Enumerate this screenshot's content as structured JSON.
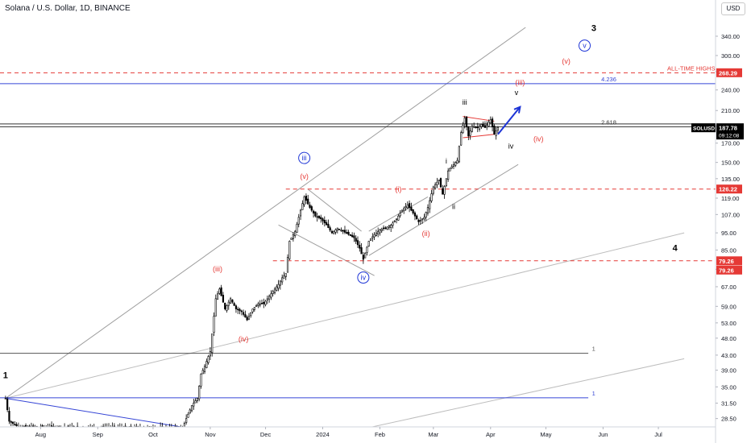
{
  "header": {
    "title": "Solana / U.S. Dollar, 1D, BINANCE",
    "currency": "USD"
  },
  "price_tag": {
    "symbol": "SOLUSD",
    "price": "187.78",
    "countdown": "09:12:08"
  },
  "colors": {
    "candle": "#000000",
    "red_labels": "#e53935",
    "blue_labels": "#1e35d6",
    "resistance_line": "#e53935",
    "fib_line": "#3646d6",
    "channel": "#9e9e9e",
    "price_tag_bg": "#000000",
    "level_tag_bg": "#e53935"
  },
  "chart_data": {
    "type": "candlestick",
    "title": "Solana / U.S. Dollar, 1D, BINANCE",
    "y_scale": "log",
    "ylim": [
      27,
      430
    ],
    "xlim": [
      "2023-07-10",
      "2024-08-01"
    ],
    "x_ticks": [
      {
        "date": "2023-08-01",
        "label": "Aug"
      },
      {
        "date": "2023-09-01",
        "label": "Sep"
      },
      {
        "date": "2023-10-01",
        "label": "Oct"
      },
      {
        "date": "2023-11-01",
        "label": "Nov"
      },
      {
        "date": "2023-12-01",
        "label": "Dec"
      },
      {
        "date": "2024-01-01",
        "label": "2024"
      },
      {
        "date": "2024-02-01",
        "label": "Feb"
      },
      {
        "date": "2024-03-01",
        "label": "Mar"
      },
      {
        "date": "2024-04-01",
        "label": "Apr"
      },
      {
        "date": "2024-05-01",
        "label": "May"
      },
      {
        "date": "2024-06-01",
        "label": "Jun"
      },
      {
        "date": "2024-07-01",
        "label": "Jul"
      }
    ],
    "y_ticks": [
      28.5,
      31.5,
      35,
      39,
      43,
      48,
      53,
      59,
      67,
      75,
      85,
      95,
      107,
      119,
      135,
      150,
      170,
      190,
      210,
      240,
      270,
      300,
      340
    ],
    "y_tick_labels": [
      "28.50",
      "31.50",
      "35.00",
      "39.00",
      "43.00",
      "48.00",
      "53.00",
      "59.00",
      "67.00",
      "75.00",
      "85.00",
      "95.00",
      "107.00",
      "119.00",
      "135.00",
      "150.00",
      "170.00",
      "190.00",
      "210.00",
      "240.00",
      "270.00",
      "300.00",
      "340.00"
    ],
    "price_path": [
      [
        "2023-07-13",
        32.5
      ],
      [
        "2023-07-15",
        28
      ],
      [
        "2023-07-20",
        27
      ],
      [
        "2023-10-17",
        26.8
      ],
      [
        "2023-10-19",
        28.5
      ],
      [
        "2023-10-22",
        31
      ],
      [
        "2023-10-25",
        32.5
      ],
      [
        "2023-10-27",
        38
      ],
      [
        "2023-10-29",
        40
      ],
      [
        "2023-11-01",
        44
      ],
      [
        "2023-11-04",
        62
      ],
      [
        "2023-11-06",
        66
      ],
      [
        "2023-11-09",
        58
      ],
      [
        "2023-11-12",
        62
      ],
      [
        "2023-11-15",
        58
      ],
      [
        "2023-11-18",
        57
      ],
      [
        "2023-11-21",
        54
      ],
      [
        "2023-11-24",
        58
      ],
      [
        "2023-11-27",
        60
      ],
      [
        "2023-11-30",
        60
      ],
      [
        "2023-12-03",
        63
      ],
      [
        "2023-12-06",
        66
      ],
      [
        "2023-12-08",
        68
      ],
      [
        "2023-12-10",
        71
      ],
      [
        "2023-12-12",
        73
      ],
      [
        "2023-12-14",
        90
      ],
      [
        "2023-12-17",
        96
      ],
      [
        "2023-12-20",
        110
      ],
      [
        "2023-12-22",
        120
      ],
      [
        "2023-12-25",
        112
      ],
      [
        "2023-12-28",
        106
      ],
      [
        "2023-12-31",
        104
      ],
      [
        "2024-01-03",
        100
      ],
      [
        "2024-01-06",
        95
      ],
      [
        "2024-01-09",
        98
      ],
      [
        "2024-01-12",
        96
      ],
      [
        "2024-01-15",
        94
      ],
      [
        "2024-01-18",
        92
      ],
      [
        "2024-01-21",
        86
      ],
      [
        "2024-01-23",
        80
      ],
      [
        "2024-01-26",
        90
      ],
      [
        "2024-01-29",
        94
      ],
      [
        "2024-02-01",
        97
      ],
      [
        "2024-02-04",
        98
      ],
      [
        "2024-02-07",
        100
      ],
      [
        "2024-02-10",
        104
      ],
      [
        "2024-02-13",
        110
      ],
      [
        "2024-02-16",
        114
      ],
      [
        "2024-02-19",
        108
      ],
      [
        "2024-02-22",
        102
      ],
      [
        "2024-02-25",
        105
      ],
      [
        "2024-02-27",
        112
      ],
      [
        "2024-03-01",
        128
      ],
      [
        "2024-03-04",
        134
      ],
      [
        "2024-03-06",
        122
      ],
      [
        "2024-03-09",
        142
      ],
      [
        "2024-03-12",
        148
      ],
      [
        "2024-03-14",
        152
      ],
      [
        "2024-03-16",
        182
      ],
      [
        "2024-03-18",
        200
      ],
      [
        "2024-03-20",
        178
      ],
      [
        "2024-03-22",
        190
      ],
      [
        "2024-03-25",
        188
      ],
      [
        "2024-03-27",
        192
      ],
      [
        "2024-03-29",
        188
      ],
      [
        "2024-04-01",
        198
      ],
      [
        "2024-04-03",
        180
      ],
      [
        "2024-04-05",
        187.78
      ]
    ],
    "horizontal_lines": [
      {
        "value": 268.29,
        "label": "ALL-TIME HIGHS",
        "color": "#e53935",
        "style": "dashed",
        "tag": "268.29"
      },
      {
        "value": 250,
        "label": "4.236",
        "color": "#3646d6",
        "style": "solid"
      },
      {
        "value": 192.5,
        "label": "",
        "color": "#333333",
        "style": "solid"
      },
      {
        "value": 189,
        "label": "2.618",
        "color": "#333333",
        "style": "solid"
      },
      {
        "value": 126.22,
        "label": "",
        "color": "#e53935",
        "style": "dashed",
        "tag": "126.22"
      },
      {
        "value": 79.26,
        "label": "",
        "color": "#e53935",
        "style": "dashed",
        "tag": "79.26",
        "tag2": "79.26"
      },
      {
        "value": 43.5,
        "label": "1",
        "color": "#555555",
        "style": "solid"
      },
      {
        "value": 32.6,
        "label": "1",
        "color": "#3646d6",
        "style": "solid"
      }
    ],
    "trendlines": [
      {
        "from": [
          "2023-07-13",
          32.5
        ],
        "to": [
          "2024-04-20",
          360
        ],
        "color": "#9e9e9e"
      },
      {
        "from": [
          "2023-07-13",
          32.5
        ],
        "to": [
          "2024-07-15",
          95
        ],
        "color": "#bdbdbd"
      },
      {
        "from": [
          "2024-01-25",
          26.8
        ],
        "to": [
          "2024-07-15",
          42
        ],
        "color": "#bdbdbd"
      },
      {
        "from": [
          "2023-07-13",
          32.5
        ],
        "to": [
          "2023-10-20",
          26.8
        ],
        "color": "#3646d6"
      },
      {
        "from": [
          "2023-12-24",
          126
        ],
        "to": [
          "2024-01-22",
          96
        ],
        "color": "#9e9e9e"
      },
      {
        "from": [
          "2023-12-08",
          100
        ],
        "to": [
          "2024-01-29",
          72
        ],
        "color": "#9e9e9e"
      },
      {
        "from": [
          "2024-01-26",
          96
        ],
        "to": [
          "2024-02-27",
          120
        ],
        "color": "#9e9e9e"
      },
      {
        "from": [
          "2024-01-26",
          82
        ],
        "to": [
          "2024-04-16",
          148
        ],
        "color": "#9e9e9e"
      },
      {
        "from": [
          "2024-03-17",
          202
        ],
        "to": [
          "2024-04-03",
          196
        ],
        "color": "#e53935"
      },
      {
        "from": [
          "2024-03-17",
          176
        ],
        "to": [
          "2024-04-03",
          180
        ],
        "color": "#e53935"
      }
    ],
    "projection_arrow": {
      "from": [
        "2024-04-05",
        180
      ],
      "to": [
        "2024-04-17",
        215
      ],
      "color": "#1e35d6"
    },
    "wave_labels": [
      {
        "text": "1",
        "date": "2023-07-13",
        "price": 37,
        "color": "#000000",
        "circle": false
      },
      {
        "text": "(iii)",
        "date": "2023-11-05",
        "price": 74,
        "color": "#e53935",
        "circle": false
      },
      {
        "text": "(iv)",
        "date": "2023-11-19",
        "price": 47,
        "color": "#e53935",
        "circle": false
      },
      {
        "text": "iii",
        "date": "2023-12-22",
        "price": 152,
        "color": "#1e35d6",
        "circle": true
      },
      {
        "text": "(v)",
        "date": "2023-12-22",
        "price": 135,
        "color": "#e53935",
        "circle": false
      },
      {
        "text": "iv",
        "date": "2024-01-23",
        "price": 70,
        "color": "#1e35d6",
        "circle": true
      },
      {
        "text": "(i)",
        "date": "2024-02-11",
        "price": 124,
        "color": "#e53935",
        "circle": false
      },
      {
        "text": "(ii)",
        "date": "2024-02-26",
        "price": 93,
        "color": "#e53935",
        "circle": false
      },
      {
        "text": "i",
        "date": "2024-03-08",
        "price": 149,
        "color": "#000000",
        "circle": false
      },
      {
        "text": "ii",
        "date": "2024-03-12",
        "price": 111,
        "color": "#000000",
        "circle": false
      },
      {
        "text": "iii",
        "date": "2024-03-18",
        "price": 218,
        "color": "#000000",
        "circle": false
      },
      {
        "text": "iv",
        "date": "2024-04-12",
        "price": 164,
        "color": "#000000",
        "circle": false
      },
      {
        "text": "v",
        "date": "2024-04-15",
        "price": 232,
        "color": "#000000",
        "circle": false
      },
      {
        "text": "(iv)",
        "date": "2024-04-27",
        "price": 172,
        "color": "#e53935",
        "circle": false
      },
      {
        "text": "(iii)",
        "date": "2024-04-17",
        "price": 248,
        "color": "#e53935",
        "circle": false
      },
      {
        "text": "(v)",
        "date": "2024-05-12",
        "price": 285,
        "color": "#e53935",
        "circle": false
      },
      {
        "text": "v",
        "date": "2024-05-22",
        "price": 315,
        "color": "#1e35d6",
        "circle": true
      },
      {
        "text": "3",
        "date": "2024-05-27",
        "price": 352,
        "color": "#000000",
        "circle": false
      },
      {
        "text": "4",
        "date": "2024-07-10",
        "price": 84.5,
        "color": "#000000",
        "circle": false
      }
    ]
  }
}
